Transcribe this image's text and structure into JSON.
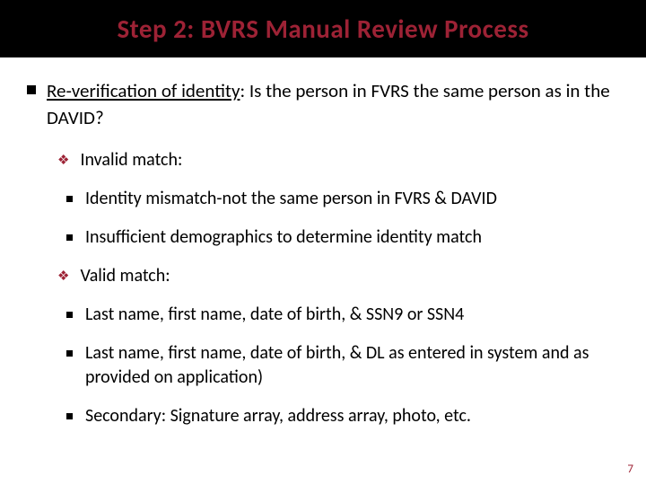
{
  "title": "Step 2: BVRS Manual Review Process",
  "colors": {
    "accent": "#9d2235",
    "title_bg": "#000000",
    "text": "#000000",
    "bg": "#ffffff"
  },
  "typography": {
    "title_fontsize": 29,
    "body_fontsize": 21,
    "sub_fontsize": 20,
    "title_weight": 700
  },
  "page_number": "7",
  "l1_label": "Re-verification of identity",
  "l1_rest": ": Is the person in FVRS the same person as in the DAVID?",
  "invalid_label": "Invalid match:",
  "invalid_items": [
    "Identity mismatch-not the same person in FVRS & DAVID",
    "Insufficient demographics to determine identity match"
  ],
  "valid_label": "Valid match:",
  "valid_items": [
    "Last name, first name, date of birth, & SSN9 or SSN4",
    "Last name, first name, date of birth, & DL as entered in system and as provided on application)",
    "Secondary: Signature array, address array, photo, etc."
  ]
}
